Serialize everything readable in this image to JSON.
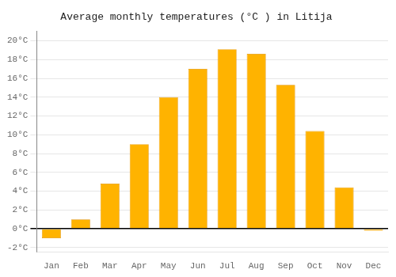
{
  "chart_data": {
    "type": "bar",
    "title": "Average monthly temperatures (°C ) in Litija",
    "categories": [
      "Jan",
      "Feb",
      "Mar",
      "Apr",
      "May",
      "Jun",
      "Jul",
      "Aug",
      "Sep",
      "Oct",
      "Nov",
      "Dec"
    ],
    "values": [
      -1.0,
      1.0,
      4.8,
      9.0,
      14.0,
      17.0,
      19.1,
      18.6,
      15.3,
      10.4,
      4.4,
      -0.2
    ],
    "color": "#FFB300",
    "ylim": [
      -2.5,
      21
    ],
    "yticks": [
      {
        "value": -2,
        "label": "-2°C"
      },
      {
        "value": 0,
        "label": "0°C"
      },
      {
        "value": 2,
        "label": "2°C"
      },
      {
        "value": 4,
        "label": "4°C"
      },
      {
        "value": 6,
        "label": "6°C"
      },
      {
        "value": 8,
        "label": "8°C"
      },
      {
        "value": 10,
        "label": "10°C"
      },
      {
        "value": 12,
        "label": "12°C"
      },
      {
        "value": 14,
        "label": "14°C"
      },
      {
        "value": 16,
        "label": "16°C"
      },
      {
        "value": 18,
        "label": "18°C"
      },
      {
        "value": 20,
        "label": "20°C"
      }
    ],
    "grid": true
  }
}
